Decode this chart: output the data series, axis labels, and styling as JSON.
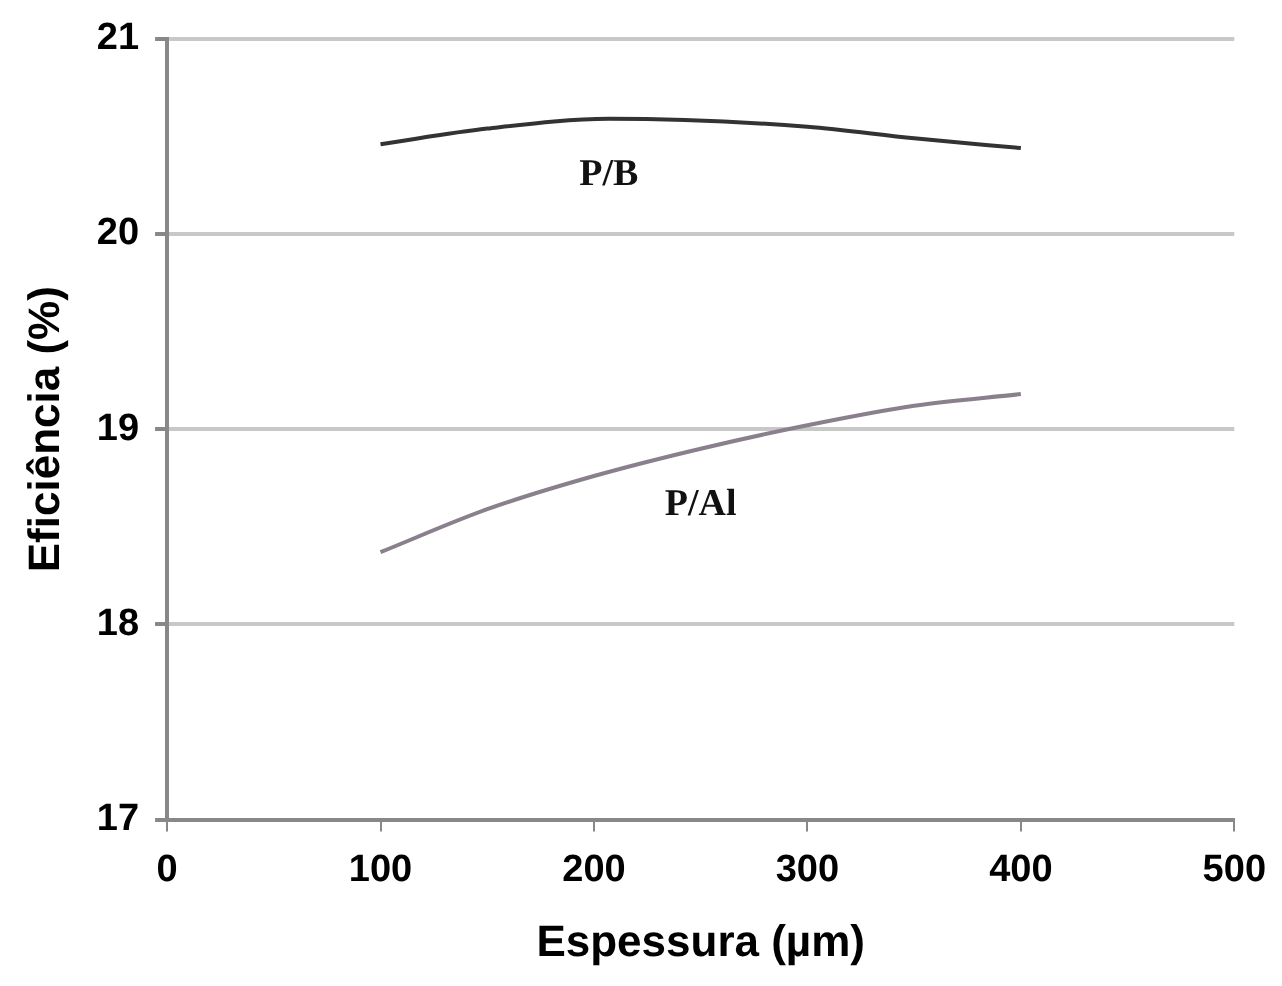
{
  "chart_data": {
    "type": "line",
    "xlabel": "Espessura (µm)",
    "ylabel": "Eficiência (%)",
    "xlim": [
      0,
      500
    ],
    "xticks": [
      0,
      100,
      200,
      300,
      400,
      500
    ],
    "ylim": [
      17,
      21
    ],
    "yticks": [
      17,
      18,
      19,
      20,
      21
    ],
    "grid": "y",
    "marker": "none",
    "line_style": "solid",
    "series": [
      {
        "name": "P/B",
        "color": "#333333",
        "x": [
          100,
          150,
          207,
          300,
          350,
          400
        ],
        "values": [
          20.46,
          20.54,
          20.59,
          20.55,
          20.49,
          20.44
        ]
      },
      {
        "name": "P/Al",
        "color": "#8a7f8c",
        "x": [
          100,
          150,
          200,
          250,
          300,
          350,
          400
        ],
        "values": [
          18.37,
          18.59,
          18.76,
          18.9,
          19.02,
          19.12,
          19.18
        ]
      }
    ]
  }
}
